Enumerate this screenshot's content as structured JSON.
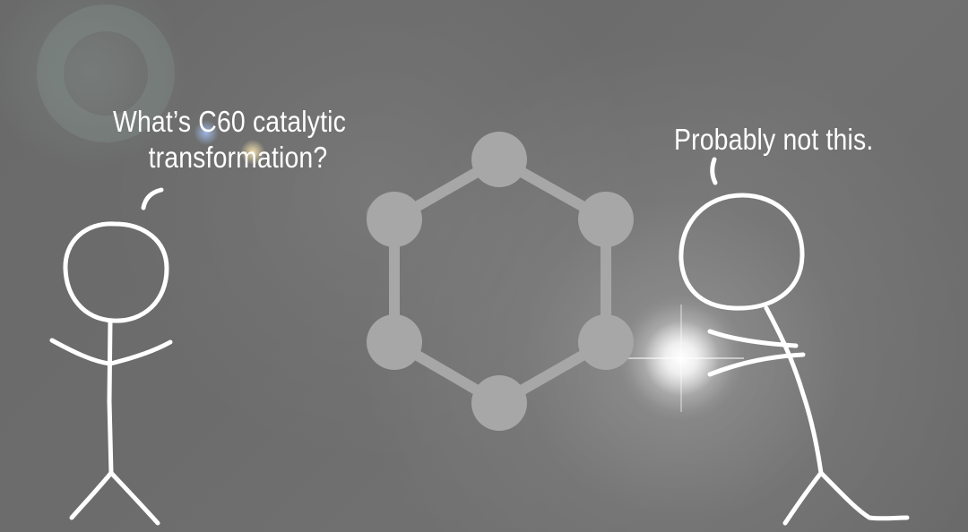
{
  "dialogue": {
    "left_speech_line1": "What’s C60 catalytic",
    "left_speech_line2": "transformation?",
    "right_speech": "Probably not this."
  },
  "colors": {
    "background": "#686868",
    "stroke": "#ffffff",
    "molecule": "#a7a7a7"
  },
  "icons": {
    "molecule": "hexagon-molecule-icon",
    "left_character": "stick-figure-icon",
    "right_character": "stick-figure-icon"
  }
}
